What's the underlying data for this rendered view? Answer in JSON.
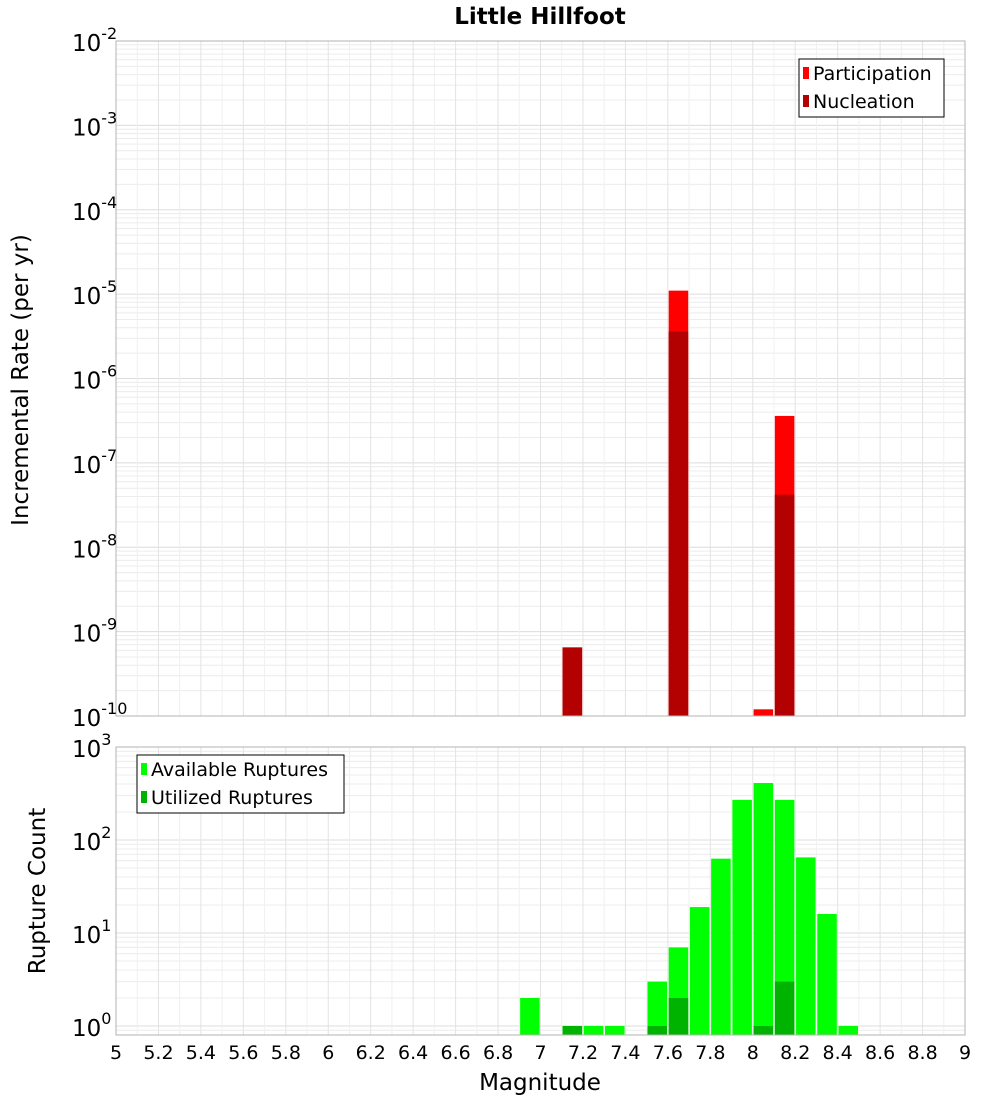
{
  "chart_data": [
    {
      "type": "bar",
      "title": "Little Hillfoot",
      "ylabel": "Incremental Rate (per yr)",
      "xlabel": "",
      "y_scale": "log",
      "ylim": [
        1e-10,
        0.01
      ],
      "xlim": [
        5,
        9
      ],
      "bar_width": 0.1,
      "y_ticks": [
        {
          "base": "10",
          "exp": "-2"
        },
        {
          "base": "10",
          "exp": "-3"
        },
        {
          "base": "10",
          "exp": "-4"
        },
        {
          "base": "10",
          "exp": "-5"
        },
        {
          "base": "10",
          "exp": "-6"
        },
        {
          "base": "10",
          "exp": "-7"
        },
        {
          "base": "10",
          "exp": "-8"
        },
        {
          "base": "10",
          "exp": "-9"
        },
        {
          "base": "10",
          "exp": "-10"
        }
      ],
      "legend": {
        "position": "top-right"
      },
      "series": [
        {
          "name": "Participation",
          "color": "#ff0000",
          "points": [
            {
              "x": 7.15,
              "y": 6.5e-10
            },
            {
              "x": 7.65,
              "y": 1.1e-05
            },
            {
              "x": 8.05,
              "y": 1.2e-10
            },
            {
              "x": 8.15,
              "y": 3.6e-07
            }
          ]
        },
        {
          "name": "Nucleation",
          "color": "#b30000",
          "points": [
            {
              "x": 7.15,
              "y": 6.5e-10
            },
            {
              "x": 7.65,
              "y": 3.6e-06
            },
            {
              "x": 8.15,
              "y": 4.2e-08
            }
          ]
        }
      ]
    },
    {
      "type": "bar",
      "title": "",
      "ylabel": "Rupture Count",
      "xlabel": "Magnitude",
      "y_scale": "log",
      "ylim": [
        0.8,
        1000
      ],
      "xlim": [
        5,
        9
      ],
      "bar_width": 0.1,
      "y_ticks": [
        {
          "base": "10",
          "exp": "3",
          "value": 1000
        },
        {
          "base": "10",
          "exp": "2",
          "value": 100
        },
        {
          "base": "10",
          "exp": "1",
          "value": 10
        },
        {
          "base": "10",
          "exp": "0",
          "value": 1
        }
      ],
      "x_ticks": [
        "5",
        "5.2",
        "5.4",
        "5.6",
        "5.8",
        "6",
        "6.2",
        "6.4",
        "6.6",
        "6.8",
        "7",
        "7.2",
        "7.4",
        "7.6",
        "7.8",
        "8",
        "8.2",
        "8.4",
        "8.6",
        "8.8",
        "9"
      ],
      "legend": {
        "position": "top-left"
      },
      "series": [
        {
          "name": "Available Ruptures",
          "color": "#00ff00",
          "points": [
            {
              "x": 6.95,
              "y": 2
            },
            {
              "x": 7.15,
              "y": 1
            },
            {
              "x": 7.25,
              "y": 1
            },
            {
              "x": 7.35,
              "y": 1
            },
            {
              "x": 7.55,
              "y": 3
            },
            {
              "x": 7.65,
              "y": 7
            },
            {
              "x": 7.75,
              "y": 19
            },
            {
              "x": 7.85,
              "y": 63
            },
            {
              "x": 7.95,
              "y": 270
            },
            {
              "x": 8.05,
              "y": 410
            },
            {
              "x": 8.15,
              "y": 270
            },
            {
              "x": 8.25,
              "y": 65
            },
            {
              "x": 8.35,
              "y": 16
            },
            {
              "x": 8.45,
              "y": 1
            }
          ]
        },
        {
          "name": "Utilized Ruptures",
          "color": "#00b300",
          "points": [
            {
              "x": 7.15,
              "y": 1
            },
            {
              "x": 7.55,
              "y": 1
            },
            {
              "x": 7.65,
              "y": 2
            },
            {
              "x": 8.05,
              "y": 1
            },
            {
              "x": 8.15,
              "y": 3
            }
          ]
        }
      ]
    }
  ]
}
